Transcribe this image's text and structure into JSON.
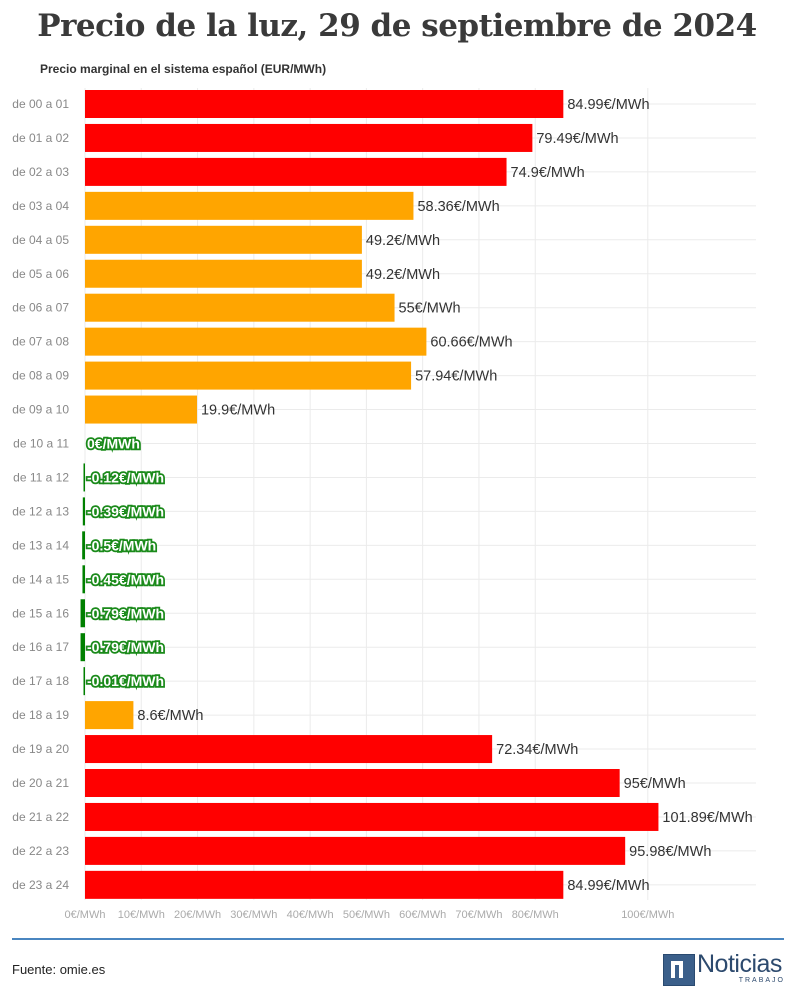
{
  "title": "Precio de la luz, 29 de septiembre de 2024",
  "subtitle": "Precio marginal en el sistema español (EUR/MWh)",
  "footer": {
    "source": "Fuente: omie.es",
    "logo_text": "Noticias",
    "logo_subtext": "TRABAJO"
  },
  "colors": {
    "high": "#ff0000",
    "mid": "#ffa500",
    "negative": "#008000",
    "grid": "#ebebeb",
    "rule": "#4a86c0"
  },
  "chart_data": {
    "type": "bar",
    "orientation": "horizontal",
    "title": "Precio de la luz, 29 de septiembre de 2024",
    "subtitle": "Precio marginal en el sistema español (EUR/MWh)",
    "categories": [
      "de 00 a 01",
      "de 01 a 02",
      "de 02 a 03",
      "de 03 a 04",
      "de 04 a 05",
      "de 05 a 06",
      "de 06 a 07",
      "de 07 a 08",
      "de 08 a 09",
      "de 09 a 10",
      "de 10 a 11",
      "de 11 a 12",
      "de 12 a 13",
      "de 13 a 14",
      "de 14 a 15",
      "de 15 a 16",
      "de 16 a 17",
      "de 17 a 18",
      "de 18 a 19",
      "de 19 a 20",
      "de 20 a 21",
      "de 21 a 22",
      "de 22 a 23",
      "de 23 a 24"
    ],
    "values": [
      84.99,
      79.49,
      74.9,
      58.36,
      49.2,
      49.2,
      55,
      60.66,
      57.94,
      19.9,
      0,
      -0.12,
      -0.39,
      -0.5,
      -0.45,
      -0.79,
      -0.79,
      -0.01,
      8.6,
      72.34,
      95,
      101.89,
      95.98,
      84.99
    ],
    "value_labels": [
      "84.99€/MWh",
      "79.49€/MWh",
      "74.9€/MWh",
      "58.36€/MWh",
      "49.2€/MWh",
      "49.2€/MWh",
      "55€/MWh",
      "60.66€/MWh",
      "57.94€/MWh",
      "19.9€/MWh",
      "0€/MWh",
      "-0.12€/MWh",
      "-0.39€/MWh",
      "-0.5€/MWh",
      "-0.45€/MWh",
      "-0.79€/MWh",
      "-0.79€/MWh",
      "-0.01€/MWh",
      "8.6€/MWh",
      "72.34€/MWh",
      "95€/MWh",
      "101.89€/MWh",
      "95.98€/MWh",
      "84.99€/MWh"
    ],
    "bar_colors": [
      "#ff0000",
      "#ff0000",
      "#ff0000",
      "#ffa500",
      "#ffa500",
      "#ffa500",
      "#ffa500",
      "#ffa500",
      "#ffa500",
      "#ffa500",
      "#008000",
      "#008000",
      "#008000",
      "#008000",
      "#008000",
      "#008000",
      "#008000",
      "#008000",
      "#ffa500",
      "#ff0000",
      "#ff0000",
      "#ff0000",
      "#ff0000",
      "#ff0000"
    ],
    "xticks": [
      0,
      10,
      20,
      30,
      40,
      50,
      60,
      70,
      80,
      100
    ],
    "xtick_labels": [
      "0€/MWh",
      "10€/MWh",
      "20€/MWh",
      "30€/MWh",
      "40€/MWh",
      "50€/MWh",
      "60€/MWh",
      "70€/MWh",
      "80€/MWh",
      "100€/MWh"
    ],
    "xlim": [
      0,
      120
    ],
    "grid": true,
    "legend": "none"
  }
}
